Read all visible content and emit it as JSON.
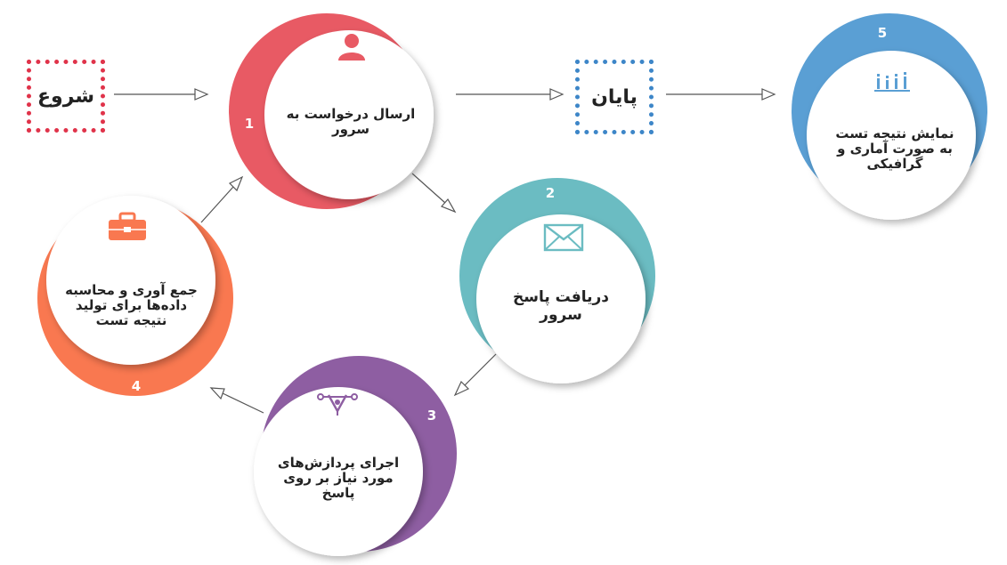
{
  "start_label": "شروع",
  "end_label": "پایان",
  "steps": [
    {
      "number": "1",
      "label": "ارسال درخواست به سرور",
      "color": "#e85a64",
      "icon": "user-icon"
    },
    {
      "number": "2",
      "label": "دریافت پاسخ سرور",
      "color": "#6bbcc2",
      "icon": "envelope-icon"
    },
    {
      "number": "3",
      "label": "اجرای پردازش‌های مورد نیاز بر روی پاسخ",
      "color": "#8e5ea2",
      "icon": "vector-pen-icon"
    },
    {
      "number": "4",
      "label": "جمع آوری و محاسبه داده‌ها برای تولید نتیجه تست",
      "color": "#f97850",
      "icon": "briefcase-icon"
    },
    {
      "number": "5",
      "label": "نمایش نتیجه تست به صورت آماری و گرافیکی",
      "color": "#5a9fd4",
      "icon": "bar-chart-icon"
    }
  ]
}
